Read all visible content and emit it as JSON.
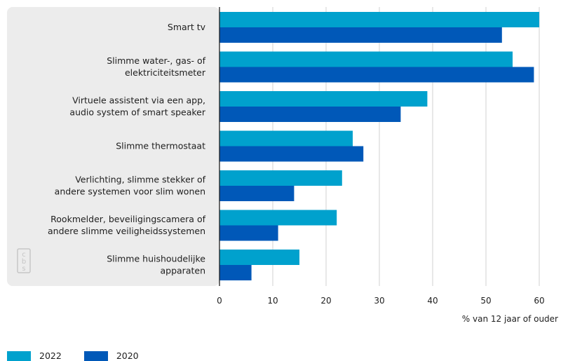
{
  "chart_data": {
    "type": "bar",
    "orientation": "horizontal",
    "categories": [
      [
        "Smart tv"
      ],
      [
        "Slimme water-, gas- of",
        "elektriciteitsmeter"
      ],
      [
        "Virtuele assistent via een app,",
        "audio system of smart speaker"
      ],
      [
        "Slimme thermostaat"
      ],
      [
        "Verlichting, slimme stekker of",
        "andere systemen voor slim wonen"
      ],
      [
        "Rookmelder, beveiligingscamera of",
        "andere slimme veiligheidssystemen"
      ],
      [
        "Slimme huishoudelijke",
        "apparaten"
      ]
    ],
    "series": [
      {
        "name": "2022",
        "color": "#00a1cd",
        "values": [
          60,
          55,
          39,
          25,
          23,
          22,
          15
        ]
      },
      {
        "name": "2020",
        "color": "#0058b8",
        "values": [
          53,
          59,
          34,
          27,
          14,
          11,
          6
        ]
      }
    ],
    "xlim": [
      0,
      60
    ],
    "xticks": [
      0,
      10,
      20,
      30,
      40,
      50,
      60
    ],
    "xlabel": "% van 12 jaar of ouder",
    "grid": true,
    "legend_position": "bottom-left"
  },
  "colors": {
    "panel": "#ececec",
    "grid": "#d0d0d0",
    "axis": "#1e1e1e",
    "logo": "#c8c8c8"
  },
  "logo": {
    "icon": "cbs-logo-icon",
    "text": "cbs"
  }
}
